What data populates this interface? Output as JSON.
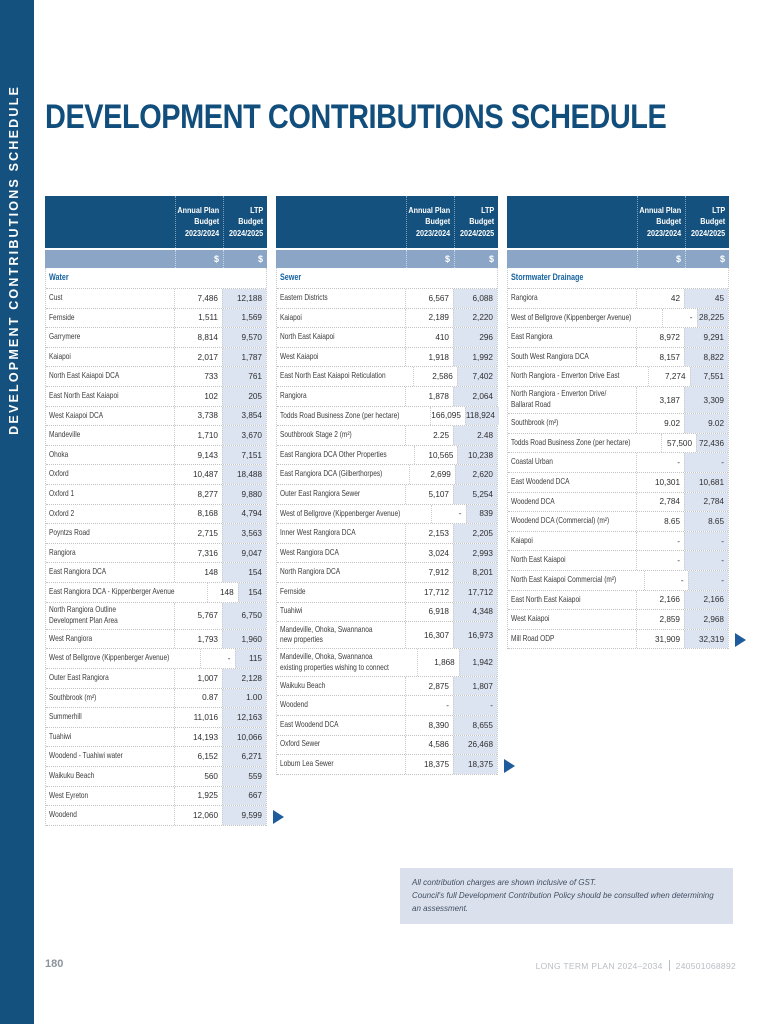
{
  "sidebar": {
    "vertical_label": "DEVELOPMENT CONTRIBUTIONS SCHEDULE"
  },
  "header": {
    "title": "DEVELOPMENT CONTRIBUTIONS SCHEDULE"
  },
  "table_header": {
    "col1": "Annual Plan\nBudget\n2023/2024",
    "col2": "LTP\nBudget\n2024/2025",
    "unit": "$"
  },
  "tables": [
    {
      "section": "Water",
      "rows": [
        {
          "label": "Cust",
          "v1": "7,486",
          "v2": "12,188"
        },
        {
          "label": "Fernside",
          "v1": "1,511",
          "v2": "1,569"
        },
        {
          "label": "Garrymere",
          "v1": "8,814",
          "v2": "9,570"
        },
        {
          "label": "Kaiapoi",
          "v1": "2,017",
          "v2": "1,787"
        },
        {
          "label": "North East Kaiapoi DCA",
          "v1": "733",
          "v2": "761"
        },
        {
          "label": "East North East Kaiapoi",
          "v1": "102",
          "v2": "205"
        },
        {
          "label": "West Kaiapoi DCA",
          "v1": "3,738",
          "v2": "3,854"
        },
        {
          "label": "Mandeville",
          "v1": "1,710",
          "v2": "3,670"
        },
        {
          "label": "Ohoka",
          "v1": "9,143",
          "v2": "7,151"
        },
        {
          "label": "Oxford",
          "v1": "10,487",
          "v2": "18,488"
        },
        {
          "label": "Oxford 1",
          "v1": "8,277",
          "v2": "9,880"
        },
        {
          "label": "Oxford 2",
          "v1": "8,168",
          "v2": "4,794"
        },
        {
          "label": "Poyntzs Road",
          "v1": "2,715",
          "v2": "3,563"
        },
        {
          "label": "Rangiora",
          "v1": "7,316",
          "v2": "9,047"
        },
        {
          "label": "East Rangiora DCA",
          "v1": "148",
          "v2": "154"
        },
        {
          "label": "East Rangiora DCA - Kippenberger Avenue",
          "v1": "148",
          "v2": "154"
        },
        {
          "label": "North Rangiora Outline\nDevelopment Plan Area",
          "v1": "5,767",
          "v2": "6,750"
        },
        {
          "label": "West Rangiora",
          "v1": "1,793",
          "v2": "1,960"
        },
        {
          "label": "West of Bellgrove (Kippenberger Avenue)",
          "v1": "-",
          "v2": "115"
        },
        {
          "label": "Outer East Rangiora",
          "v1": "1,007",
          "v2": "2,128"
        },
        {
          "label": "Southbrook (m²)",
          "v1": "0.87",
          "v2": "1.00"
        },
        {
          "label": "Summerhill",
          "v1": "11,016",
          "v2": "12,163"
        },
        {
          "label": "Tuahiwi",
          "v1": "14,193",
          "v2": "10,066"
        },
        {
          "label": "Woodend - Tuahiwi water",
          "v1": "6,152",
          "v2": "6,271"
        },
        {
          "label": "Waikuku Beach",
          "v1": "560",
          "v2": "559"
        },
        {
          "label": "West Eyreton",
          "v1": "1,925",
          "v2": "667"
        },
        {
          "label": "Woodend",
          "v1": "12,060",
          "v2": "9,599"
        }
      ]
    },
    {
      "section": "Sewer",
      "rows": [
        {
          "label": "Eastern Districts",
          "v1": "6,567",
          "v2": "6,088"
        },
        {
          "label": "Kaiapoi",
          "v1": "2,189",
          "v2": "2,220"
        },
        {
          "label": "North East Kaiapoi",
          "v1": "410",
          "v2": "296"
        },
        {
          "label": "West Kaiapoi",
          "v1": "1,918",
          "v2": "1,992"
        },
        {
          "label": "East North East Kaiapoi Reticulation",
          "v1": "2,586",
          "v2": "7,402"
        },
        {
          "label": "Rangiora",
          "v1": "1,878",
          "v2": "2,064"
        },
        {
          "label": "Todds Road Business Zone (per hectare)",
          "v1": "166,095",
          "v2": "118,924"
        },
        {
          "label": "Southbrook Stage 2 (m²)",
          "v1": "2.25",
          "v2": "2.48"
        },
        {
          "label": "East Rangiora DCA Other Properties",
          "v1": "10,565",
          "v2": "10,238"
        },
        {
          "label": "East Rangiora DCA (Gilberthorpes)",
          "v1": "2,699",
          "v2": "2,620"
        },
        {
          "label": "Outer East Rangiora Sewer",
          "v1": "5,107",
          "v2": "5,254"
        },
        {
          "label": "West of Bellgrove (Kippenberger Avenue)",
          "v1": "-",
          "v2": "839"
        },
        {
          "label": "Inner West Rangiora DCA",
          "v1": "2,153",
          "v2": "2,205"
        },
        {
          "label": "West Rangiora DCA",
          "v1": "3,024",
          "v2": "2,993"
        },
        {
          "label": "North Rangiora DCA",
          "v1": "7,912",
          "v2": "8,201"
        },
        {
          "label": "Fernside",
          "v1": "17,712",
          "v2": "17,712"
        },
        {
          "label": "Tuahiwi",
          "v1": "6,918",
          "v2": "4,348"
        },
        {
          "label": "Mandeville, Ohoka, Swannanoa\nnew properties",
          "v1": "16,307",
          "v2": "16,973"
        },
        {
          "label": "Mandeville, Ohoka, Swannanoa\nexisting properties wishing to connect",
          "v1": "1,868",
          "v2": "1,942"
        },
        {
          "label": "Waikuku Beach",
          "v1": "2,875",
          "v2": "1,807"
        },
        {
          "label": "Woodend",
          "v1": "-",
          "v2": "-"
        },
        {
          "label": "East Woodend DCA",
          "v1": "8,390",
          "v2": "8,655"
        },
        {
          "label": "Oxford Sewer",
          "v1": "4,586",
          "v2": "26,468"
        },
        {
          "label": "Loburn Lea Sewer",
          "v1": "18,375",
          "v2": "18,375"
        }
      ]
    },
    {
      "section": "Stormwater Drainage",
      "rows": [
        {
          "label": "Rangiora",
          "v1": "42",
          "v2": "45"
        },
        {
          "label": "West of Bellgrove (Kippenberger Avenue)",
          "v1": "-",
          "v2": "28,225"
        },
        {
          "label": "East Rangiora",
          "v1": "8,972",
          "v2": "9,291"
        },
        {
          "label": "South West Rangiora DCA",
          "v1": "8,157",
          "v2": "8,822"
        },
        {
          "label": "North Rangiora - Enverton Drive East",
          "v1": "7,274",
          "v2": "7,551"
        },
        {
          "label": "North Rangiora - Enverton Drive/\nBallarat Road",
          "v1": "3,187",
          "v2": "3,309"
        },
        {
          "label": "Southbrook (m²)",
          "v1": "9.02",
          "v2": "9.02"
        },
        {
          "label": "Todds Road Business Zone (per hectare)",
          "v1": "57,500",
          "v2": "72,436"
        },
        {
          "label": "Coastal Urban",
          "v1": "-",
          "v2": "-"
        },
        {
          "label": "East Woodend DCA",
          "v1": "10,301",
          "v2": "10,681"
        },
        {
          "label": "Woodend DCA",
          "v1": "2,784",
          "v2": "2,784"
        },
        {
          "label": "Woodend DCA (Commercial) (m²)",
          "v1": "8.65",
          "v2": "8.65"
        },
        {
          "label": "Kaiapoi",
          "v1": "-",
          "v2": "-"
        },
        {
          "label": "North East Kaiapoi",
          "v1": "-",
          "v2": "-"
        },
        {
          "label": "North East Kaiapoi Commercial (m²)",
          "v1": "-",
          "v2": "-"
        },
        {
          "label": "East North East Kaiapoi",
          "v1": "2,166",
          "v2": "2,166"
        },
        {
          "label": "West Kaiapoi",
          "v1": "2,859",
          "v2": "2,968"
        },
        {
          "label": "Mill Road ODP",
          "v1": "31,909",
          "v2": "32,319"
        }
      ]
    }
  ],
  "footnote": {
    "line1": "All contribution charges are shown inclusive of GST.",
    "line2": "Council's full Development Contribution Policy should be consulted when determining an assessment."
  },
  "footer": {
    "page_number": "180",
    "plan_label": "LONG TERM PLAN 2024–2034",
    "doc_number": "240501068892"
  },
  "colors": {
    "primary_blue": "#15517E",
    "band_blue": "#8AA5C6",
    "ltp_column_tint": "#DCE3F1",
    "section_blue": "#1763A0",
    "arrow_blue": "#1E5C9C",
    "footnote_bg": "#DBE1EC"
  }
}
